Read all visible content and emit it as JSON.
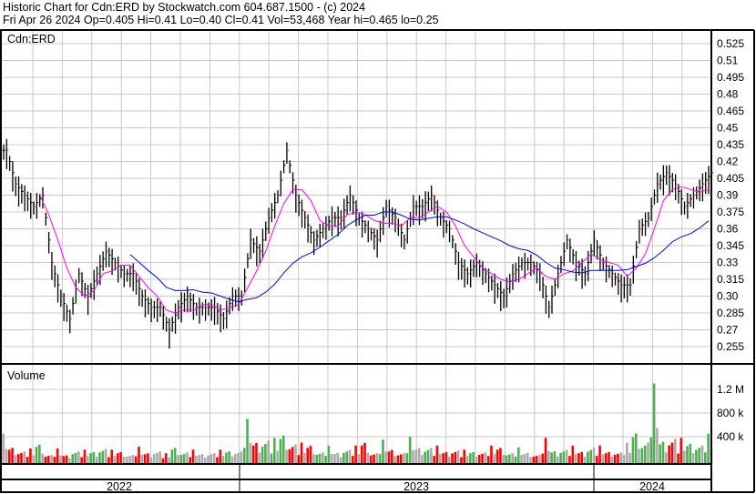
{
  "header": {
    "title": "Historic Chart for Cdn:ERD by Stockwatch.com 604.687.1500 - (c) 2024",
    "quote": "Fri Apr 26 2024   Op=0.405   Hi=0.41   Lo=0.40   Cl=0.41   Vol=53,468   Year hi=0.465   lo=0.25"
  },
  "chart_data": {
    "type": "bar",
    "price_panel_label": "Cdn:ERD",
    "volume_panel_label": "Volume",
    "ylim": [
      0.25,
      0.53
    ],
    "yticks": [
      "0.525",
      "0.51",
      "0.495",
      "0.48",
      "0.465",
      "0.45",
      "0.435",
      "0.42",
      "0.405",
      "0.39",
      "0.375",
      "0.36",
      "0.345",
      "0.33",
      "0.315",
      "0.30",
      "0.285",
      "0.27",
      "0.255"
    ],
    "volume_ticks": [
      "1.2 M",
      "800 k",
      "400 k"
    ],
    "volume_tick_values": [
      1200000,
      800000,
      400000
    ],
    "years": [
      "2022",
      "2023",
      "2024"
    ],
    "grid": true,
    "colors": {
      "price_bar": "#000000",
      "ma_short": "#ff00ff",
      "ma_long": "#0000ff",
      "vol_up": "#4caf50",
      "vol_down": "#ff0000",
      "vol_flat": "#aaaaaa",
      "grid": "#c8c8c8"
    },
    "close": [
      0.43,
      0.4,
      0.39,
      0.38,
      0.39,
      0.33,
      0.3,
      0.28,
      0.32,
      0.3,
      0.32,
      0.34,
      0.33,
      0.32,
      0.32,
      0.3,
      0.29,
      0.29,
      0.27,
      0.29,
      0.3,
      0.29,
      0.29,
      0.29,
      0.28,
      0.3,
      0.3,
      0.35,
      0.34,
      0.37,
      0.39,
      0.43,
      0.39,
      0.37,
      0.35,
      0.36,
      0.37,
      0.37,
      0.39,
      0.37,
      0.36,
      0.35,
      0.38,
      0.37,
      0.35,
      0.38,
      0.38,
      0.39,
      0.37,
      0.36,
      0.33,
      0.32,
      0.33,
      0.32,
      0.31,
      0.3,
      0.32,
      0.33,
      0.33,
      0.32,
      0.29,
      0.32,
      0.35,
      0.33,
      0.32,
      0.35,
      0.33,
      0.32,
      0.31,
      0.31,
      0.36,
      0.37,
      0.4,
      0.41,
      0.4,
      0.38,
      0.39,
      0.4,
      0.41
    ],
    "volume": [
      450000,
      300000,
      250000,
      200000,
      380000,
      150000,
      200000,
      120000,
      250000,
      180000,
      200000,
      320000,
      180000,
      200000,
      150000,
      230000,
      170000,
      250000,
      120000,
      300000,
      220000,
      180000,
      150000,
      200000,
      180000,
      220000,
      250000,
      700000,
      420000,
      550000,
      380000,
      600000,
      450000,
      300000,
      350000,
      220000,
      250000,
      180000,
      300000,
      250000,
      420000,
      200000,
      350000,
      250000,
      200000,
      400000,
      300000,
      350000,
      250000,
      200000,
      280000,
      180000,
      200000,
      220000,
      250000,
      300000,
      200000,
      220000,
      180000,
      150000,
      380000,
      220000,
      300000,
      250000,
      200000,
      350000,
      250000,
      200000,
      220000,
      300000,
      650000,
      500000,
      1300000,
      450000,
      600000,
      380000,
      400000,
      420000,
      450000
    ]
  }
}
